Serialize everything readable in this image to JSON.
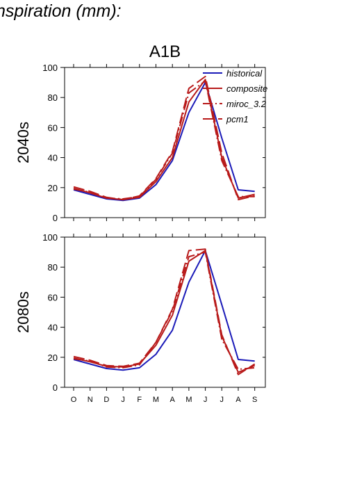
{
  "page": {
    "title": "nspiration (mm):"
  },
  "chart_data": {
    "type": "line",
    "title": "A1B",
    "categories": [
      "O",
      "N",
      "D",
      "J",
      "F",
      "M",
      "A",
      "M",
      "J",
      "J",
      "A",
      "S"
    ],
    "ylim": [
      0,
      100
    ],
    "yticks": [
      0,
      20,
      40,
      60,
      80,
      100
    ],
    "legend_placement": "top-right",
    "colors": {
      "historical": "#1a1ab8",
      "scenario": "#b81a1a"
    },
    "panels": [
      {
        "label": "2040s",
        "series": [
          {
            "name": "historical",
            "values": [
              18.5,
              15.5,
              12.5,
              11.5,
              13,
              22,
              38,
              70,
              90,
              53,
              18.5,
              17.5
            ]
          },
          {
            "name": "composite",
            "values": [
              19.5,
              16.5,
              13,
              12,
              13.5,
              24,
              40,
              77,
              92,
              40,
              13,
              15.5
            ]
          },
          {
            "name": "miroc_3.2",
            "values": [
              19,
              17,
              13,
              12.5,
              14,
              25.5,
              43,
              83,
              91,
              38,
              14,
              14
            ]
          },
          {
            "name": "pcm1",
            "values": [
              20.5,
              17.5,
              13.5,
              12,
              14.5,
              26,
              44,
              86,
              94,
              43,
              12,
              14.5
            ]
          }
        ]
      },
      {
        "label": "2080s",
        "series": [
          {
            "name": "historical",
            "values": [
              18.5,
              15.5,
              12.5,
              11.5,
              13,
              22,
              38,
              70,
              91,
              55,
              18.5,
              17.5
            ]
          },
          {
            "name": "composite",
            "values": [
              19.5,
              17,
              14,
              13.5,
              15.5,
              28,
              48,
              84,
              91,
              34,
              10,
              14.5
            ]
          },
          {
            "name": "miroc_3.2",
            "values": [
              19,
              17.5,
              13.5,
              13,
              15,
              30,
              51,
              87,
              90,
              32,
              12,
              13
            ]
          },
          {
            "name": "pcm1",
            "values": [
              20.5,
              18,
              14.5,
              14,
              16,
              30,
              52,
              91,
              92,
              35,
              8.5,
              15.5
            ]
          }
        ]
      }
    ]
  }
}
